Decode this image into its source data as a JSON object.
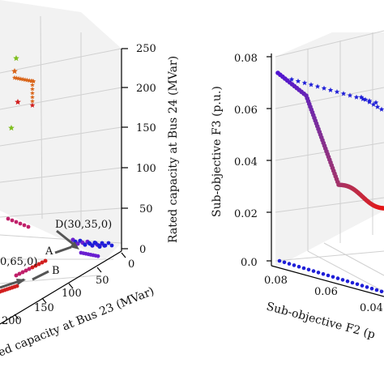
{
  "chart_data": [
    {
      "type": "scatter",
      "panel": "left",
      "projection": "3d",
      "zlabel": "Rated capacity at Bus 24 (MVar)",
      "xlabel_visible": "ed capacity at Bus 23 (MVar)",
      "z_ticks": [
        "250",
        "200",
        "150",
        "100",
        "50",
        "0"
      ],
      "x_ticks": [
        "0",
        "50",
        "100",
        "150",
        "200"
      ],
      "annotations": [
        "D(30,35,0)",
        "A",
        "B",
        "0,65,0)"
      ],
      "grid": true,
      "colors": {
        "purple": "#6a1fd0",
        "blue": "#1f1fd8",
        "orange": "#d9651a",
        "red": "#d21f1f",
        "green": "#7fbf1f",
        "magenta": "#c0206a"
      }
    },
    {
      "type": "scatter",
      "panel": "right",
      "projection": "3d",
      "ylabel": "Sub-objective F3 (p.u.)",
      "xlabel_visible": "Sub-objective F2 (p",
      "y_ticks": [
        "0.08",
        "0.06",
        "0.04",
        "0.02",
        "0.0"
      ],
      "x_ticks": [
        "0.08",
        "0.06",
        "0.04"
      ],
      "grid": true,
      "series": [
        {
          "name": "",
          "values": [
            0.074,
            0.072,
            0.068,
            0.062,
            0.054,
            0.045,
            0.036,
            0.029,
            0.025,
            0.023,
            0.022,
            0.021,
            0.02
          ]
        },
        {
          "name": "",
          "values": [
            0.072,
            0.07,
            0.068,
            0.066,
            0.064,
            0.062,
            0.061
          ]
        }
      ]
    }
  ]
}
